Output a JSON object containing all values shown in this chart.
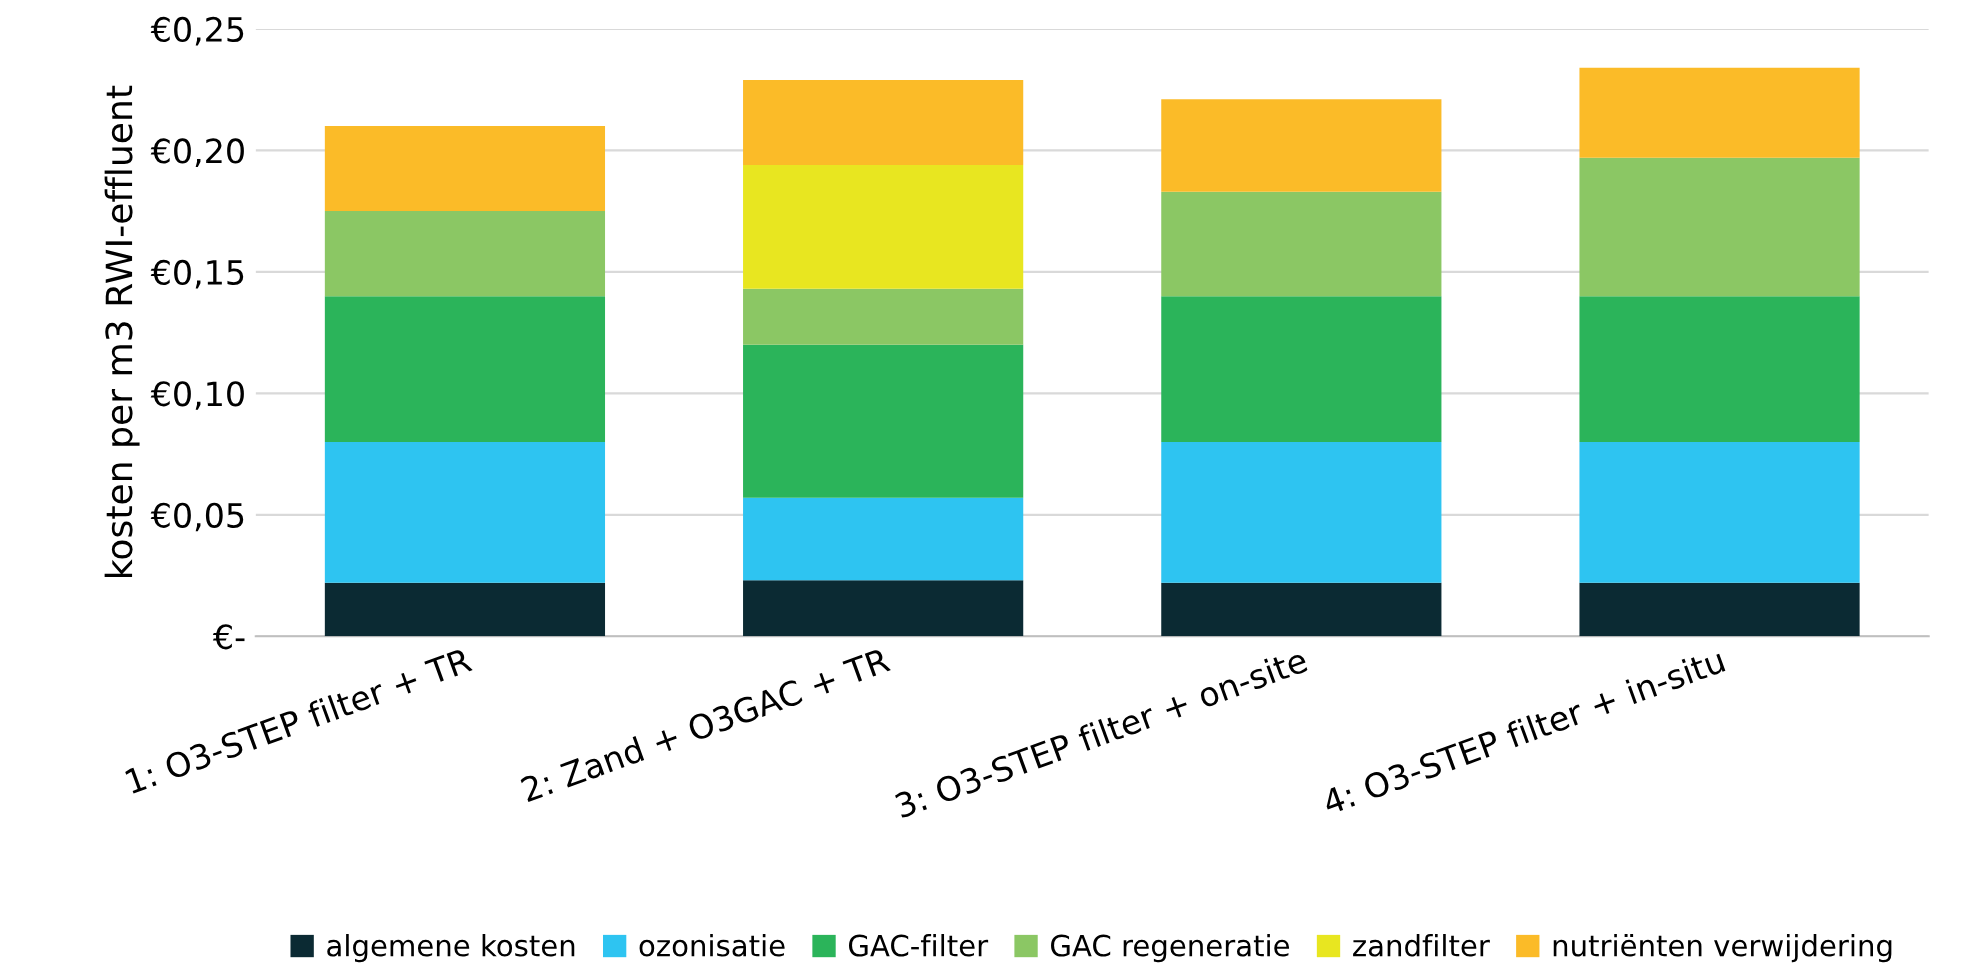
{
  "chart_data": {
    "type": "bar",
    "stacked": true,
    "ylabel": "kosten per m3 RWI-effluent",
    "categories": [
      "1: O3-STEP filter + TR",
      "2: Zand + O3GAC + TR",
      "3: O3-STEP filter + on-site",
      "4: O3-STEP filter + in-situ"
    ],
    "series": [
      {
        "name": "algemene kosten",
        "color": "#0b2a33",
        "values": [
          0.022,
          0.023,
          0.022,
          0.022
        ]
      },
      {
        "name": "ozonisatie",
        "color": "#2ec4f1",
        "values": [
          0.058,
          0.034,
          0.058,
          0.058
        ]
      },
      {
        "name": "GAC-filter",
        "color": "#2bb45a",
        "values": [
          0.06,
          0.063,
          0.06,
          0.06
        ]
      },
      {
        "name": "GAC regeneratie",
        "color": "#8bc764",
        "values": [
          0.035,
          0.023,
          0.043,
          0.057
        ]
      },
      {
        "name": "zandfilter",
        "color": "#e8e620",
        "values": [
          0,
          0.051,
          0,
          0
        ]
      },
      {
        "name": "nutriënten verwijdering",
        "color": "#fbbb28",
        "values": [
          0.035,
          0.035,
          0.038,
          0.037
        ]
      }
    ],
    "ylim": [
      0,
      0.25
    ],
    "yticks": [
      {
        "value": 0,
        "label": "€-"
      },
      {
        "value": 0.05,
        "label": "€0,05"
      },
      {
        "value": 0.1,
        "label": "€0,10"
      },
      {
        "value": 0.15,
        "label": "€0,15"
      },
      {
        "value": 0.2,
        "label": "€0,20"
      },
      {
        "value": 0.25,
        "label": "€0,25"
      }
    ],
    "grid": "y",
    "legend": "bottom"
  }
}
